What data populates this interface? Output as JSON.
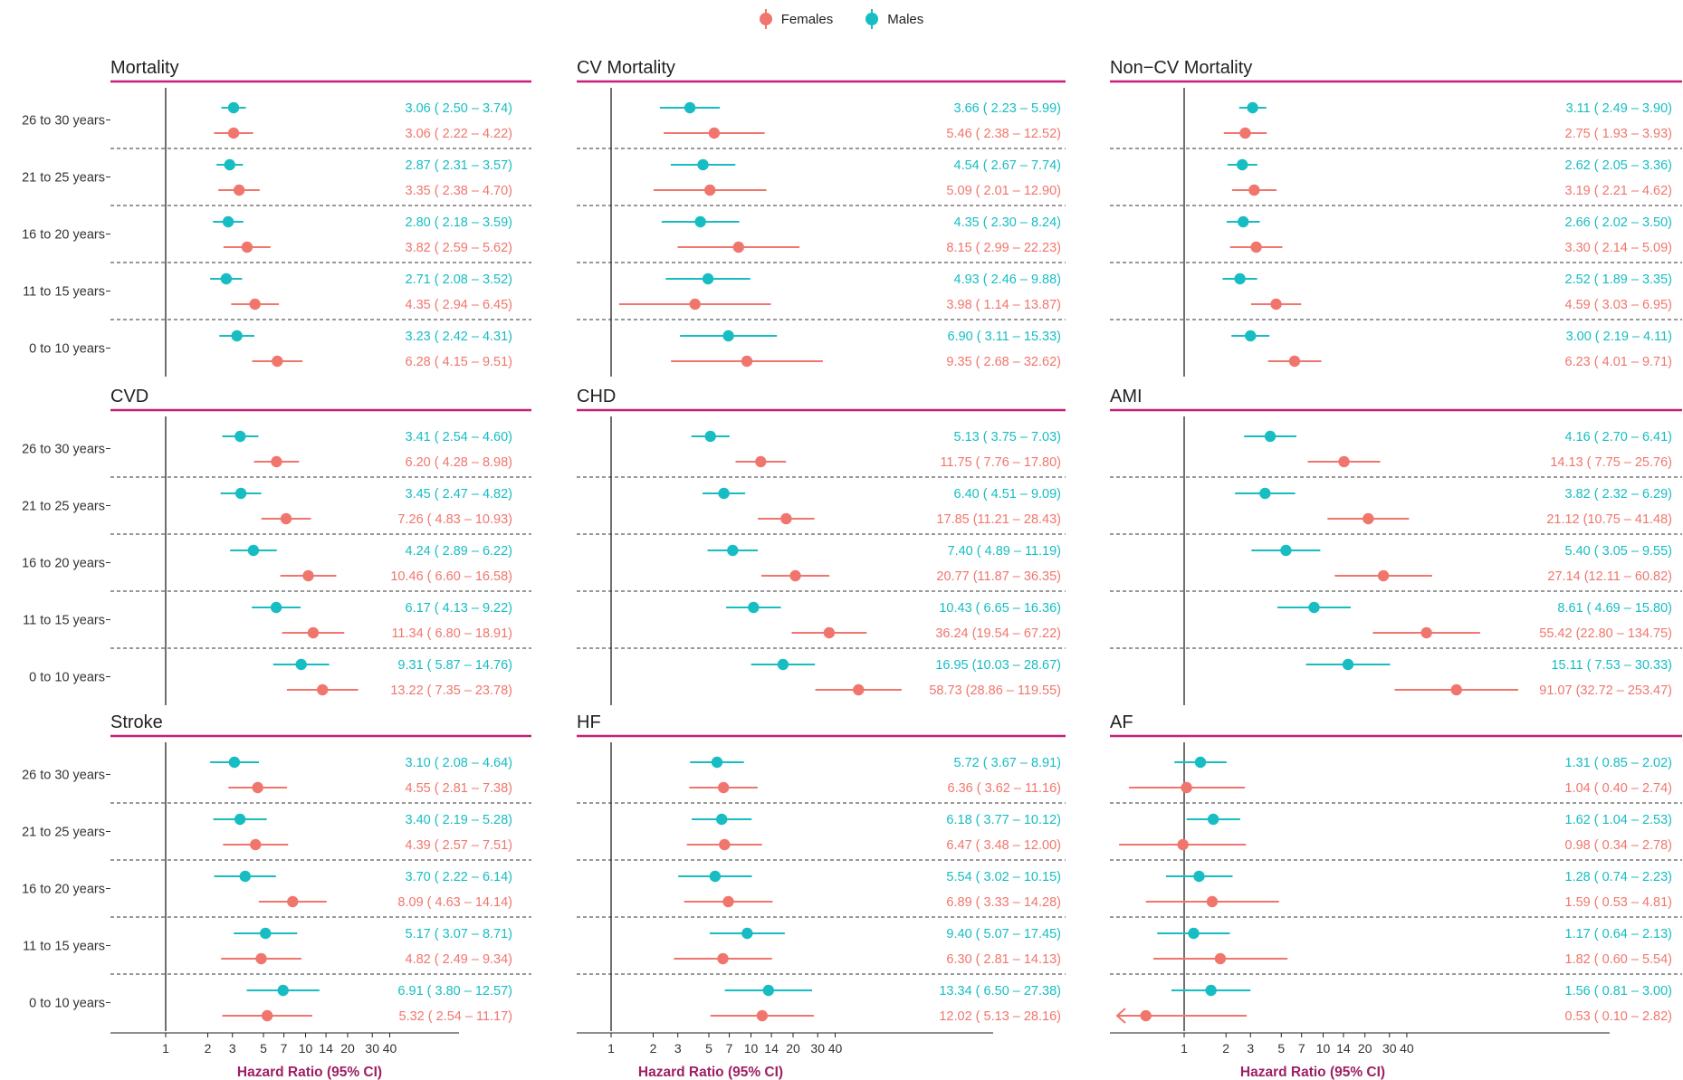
{
  "legend": {
    "females_label": "Females",
    "males_label": "Males"
  },
  "colors": {
    "females": "#F0766D",
    "males": "#17BDC2",
    "title_rule": "#C81E78",
    "axis_title": "#9E1F63",
    "text": "#222222",
    "separator": "#333333"
  },
  "chart_data": [
    {
      "type": "forest",
      "title": "Mortality",
      "xlabel": "Hazard Ratio (95% CI)",
      "xscale": "log",
      "x_ticks": [
        "1",
        "2",
        "3",
        "5",
        "7",
        "10",
        "14",
        "20",
        "30",
        "40"
      ],
      "categories": [
        "26 to 30 years",
        "21 to 25 years",
        "16 to 20 years",
        "11 to 15 years",
        "0 to 10 years"
      ],
      "series": [
        {
          "name": "Males",
          "values": [
            [
              3.06,
              2.5,
              3.74
            ],
            [
              2.87,
              2.31,
              3.57
            ],
            [
              2.8,
              2.18,
              3.59
            ],
            [
              2.71,
              2.08,
              3.52
            ],
            [
              3.23,
              2.42,
              4.31
            ]
          ]
        },
        {
          "name": "Females",
          "values": [
            [
              3.06,
              2.22,
              4.22
            ],
            [
              3.35,
              2.38,
              4.7
            ],
            [
              3.82,
              2.59,
              5.62
            ],
            [
              4.35,
              2.94,
              6.45
            ],
            [
              6.28,
              4.15,
              9.51
            ]
          ]
        }
      ]
    },
    {
      "type": "forest",
      "title": "CV Mortality",
      "xlabel": "Hazard Ratio (95% CI)",
      "xscale": "log",
      "x_ticks": [
        "1",
        "2",
        "3",
        "5",
        "7",
        "10",
        "14",
        "20",
        "30",
        "40"
      ],
      "categories": [
        "26 to 30 years",
        "21 to 25 years",
        "16 to 20 years",
        "11 to 15 years",
        "0 to 10 years"
      ],
      "series": [
        {
          "name": "Males",
          "values": [
            [
              3.66,
              2.23,
              5.99
            ],
            [
              4.54,
              2.67,
              7.74
            ],
            [
              4.35,
              2.3,
              8.24
            ],
            [
              4.93,
              2.46,
              9.88
            ],
            [
              6.9,
              3.11,
              15.33
            ]
          ]
        },
        {
          "name": "Females",
          "values": [
            [
              5.46,
              2.38,
              12.52
            ],
            [
              5.09,
              2.01,
              12.9
            ],
            [
              8.15,
              2.99,
              22.23
            ],
            [
              3.98,
              1.14,
              13.87
            ],
            [
              9.35,
              2.68,
              32.62
            ]
          ]
        }
      ]
    },
    {
      "type": "forest",
      "title": "Non−CV Mortality",
      "xlabel": "Hazard Ratio (95% CI)",
      "xscale": "log",
      "x_ticks": [
        "1",
        "2",
        "3",
        "5",
        "7",
        "10",
        "14",
        "20",
        "30",
        "40"
      ],
      "categories": [
        "26 to 30 years",
        "21 to 25 years",
        "16 to 20 years",
        "11 to 15 years",
        "0 to 10 years"
      ],
      "series": [
        {
          "name": "Males",
          "values": [
            [
              3.11,
              2.49,
              3.9
            ],
            [
              2.62,
              2.05,
              3.36
            ],
            [
              2.66,
              2.02,
              3.5
            ],
            [
              2.52,
              1.89,
              3.35
            ],
            [
              3.0,
              2.19,
              4.11
            ]
          ]
        },
        {
          "name": "Females",
          "values": [
            [
              2.75,
              1.93,
              3.93
            ],
            [
              3.19,
              2.21,
              4.62
            ],
            [
              3.3,
              2.14,
              5.09
            ],
            [
              4.59,
              3.03,
              6.95
            ],
            [
              6.23,
              4.01,
              9.71
            ]
          ]
        }
      ]
    },
    {
      "type": "forest",
      "title": "CVD",
      "xlabel": "Hazard Ratio (95% CI)",
      "xscale": "log",
      "x_ticks": [
        "1",
        "2",
        "3",
        "5",
        "7",
        "10",
        "14",
        "20",
        "30",
        "40"
      ],
      "categories": [
        "26 to 30 years",
        "21 to 25 years",
        "16 to 20 years",
        "11 to 15 years",
        "0 to 10 years"
      ],
      "series": [
        {
          "name": "Males",
          "values": [
            [
              3.41,
              2.54,
              4.6
            ],
            [
              3.45,
              2.47,
              4.82
            ],
            [
              4.24,
              2.89,
              6.22
            ],
            [
              6.17,
              4.13,
              9.22
            ],
            [
              9.31,
              5.87,
              14.76
            ]
          ]
        },
        {
          "name": "Females",
          "values": [
            [
              6.2,
              4.28,
              8.98
            ],
            [
              7.26,
              4.83,
              10.93
            ],
            [
              10.46,
              6.6,
              16.58
            ],
            [
              11.34,
              6.8,
              18.91
            ],
            [
              13.22,
              7.35,
              23.78
            ]
          ]
        }
      ]
    },
    {
      "type": "forest",
      "title": "CHD",
      "xlabel": "Hazard Ratio (95% CI)",
      "xscale": "log",
      "x_ticks": [
        "1",
        "2",
        "3",
        "5",
        "7",
        "10",
        "14",
        "20",
        "30",
        "40"
      ],
      "categories": [
        "26 to 30 years",
        "21 to 25 years",
        "16 to 20 years",
        "11 to 15 years",
        "0 to 10 years"
      ],
      "series": [
        {
          "name": "Males",
          "values": [
            [
              5.13,
              3.75,
              7.03
            ],
            [
              6.4,
              4.51,
              9.09
            ],
            [
              7.4,
              4.89,
              11.19
            ],
            [
              10.43,
              6.65,
              16.36
            ],
            [
              16.95,
              10.03,
              28.67
            ]
          ]
        },
        {
          "name": "Females",
          "values": [
            [
              11.75,
              7.76,
              17.8
            ],
            [
              17.85,
              11.21,
              28.43
            ],
            [
              20.77,
              11.87,
              36.35
            ],
            [
              36.24,
              19.54,
              67.22
            ],
            [
              58.73,
              28.86,
              119.55
            ]
          ]
        }
      ]
    },
    {
      "type": "forest",
      "title": "AMI",
      "xlabel": "Hazard Ratio (95% CI)",
      "xscale": "log",
      "x_ticks": [
        "1",
        "2",
        "3",
        "5",
        "7",
        "10",
        "14",
        "20",
        "30",
        "40"
      ],
      "categories": [
        "26 to 30 years",
        "21 to 25 years",
        "16 to 20 years",
        "11 to 15 years",
        "0 to 10 years"
      ],
      "series": [
        {
          "name": "Males",
          "values": [
            [
              4.16,
              2.7,
              6.41
            ],
            [
              3.82,
              2.32,
              6.29
            ],
            [
              5.4,
              3.05,
              9.55
            ],
            [
              8.61,
              4.69,
              15.8
            ],
            [
              15.11,
              7.53,
              30.33
            ]
          ]
        },
        {
          "name": "Females",
          "values": [
            [
              14.13,
              7.75,
              25.76
            ],
            [
              21.12,
              10.75,
              41.48
            ],
            [
              27.14,
              12.11,
              60.82
            ],
            [
              55.42,
              22.8,
              134.75
            ],
            [
              91.07,
              32.72,
              253.47
            ]
          ]
        }
      ]
    },
    {
      "type": "forest",
      "title": "Stroke",
      "xlabel": "Hazard Ratio (95% CI)",
      "xscale": "log",
      "x_ticks": [
        "1",
        "2",
        "3",
        "5",
        "7",
        "10",
        "14",
        "20",
        "30",
        "40"
      ],
      "categories": [
        "26 to 30 years",
        "21 to 25 years",
        "16 to 20 years",
        "11 to 15 years",
        "0 to 10 years"
      ],
      "series": [
        {
          "name": "Males",
          "values": [
            [
              3.1,
              2.08,
              4.64
            ],
            [
              3.4,
              2.19,
              5.28
            ],
            [
              3.7,
              2.22,
              6.14
            ],
            [
              5.17,
              3.07,
              8.71
            ],
            [
              6.91,
              3.8,
              12.57
            ]
          ]
        },
        {
          "name": "Females",
          "values": [
            [
              4.55,
              2.81,
              7.38
            ],
            [
              4.39,
              2.57,
              7.51
            ],
            [
              8.09,
              4.63,
              14.14
            ],
            [
              4.82,
              2.49,
              9.34
            ],
            [
              5.32,
              2.54,
              11.17
            ]
          ]
        }
      ]
    },
    {
      "type": "forest",
      "title": "HF",
      "xlabel": "Hazard Ratio (95% CI)",
      "xscale": "log",
      "x_ticks": [
        "1",
        "2",
        "3",
        "5",
        "7",
        "10",
        "14",
        "20",
        "30",
        "40"
      ],
      "categories": [
        "26 to 30 years",
        "21 to 25 years",
        "16 to 20 years",
        "11 to 15 years",
        "0 to 10 years"
      ],
      "series": [
        {
          "name": "Males",
          "values": [
            [
              5.72,
              3.67,
              8.91
            ],
            [
              6.18,
              3.77,
              10.12
            ],
            [
              5.54,
              3.02,
              10.15
            ],
            [
              9.4,
              5.07,
              17.45
            ],
            [
              13.34,
              6.5,
              27.38
            ]
          ]
        },
        {
          "name": "Females",
          "values": [
            [
              6.36,
              3.62,
              11.16
            ],
            [
              6.47,
              3.48,
              12.0
            ],
            [
              6.89,
              3.33,
              14.28
            ],
            [
              6.3,
              2.81,
              14.13
            ],
            [
              12.02,
              5.13,
              28.16
            ]
          ]
        }
      ]
    },
    {
      "type": "forest",
      "title": "AF",
      "xlabel": "Hazard Ratio (95% CI)",
      "xscale": "log",
      "x_ticks": [
        "1",
        "2",
        "3",
        "5",
        "7",
        "10",
        "14",
        "20",
        "30",
        "40"
      ],
      "categories": [
        "26 to 30 years",
        "21 to 25 years",
        "16 to 20 years",
        "11 to 15 years",
        "0 to 10 years"
      ],
      "series": [
        {
          "name": "Males",
          "values": [
            [
              1.31,
              0.85,
              2.02
            ],
            [
              1.62,
              1.04,
              2.53
            ],
            [
              1.28,
              0.74,
              2.23
            ],
            [
              1.17,
              0.64,
              2.13
            ],
            [
              1.56,
              0.81,
              3.0
            ]
          ]
        },
        {
          "name": "Females",
          "values": [
            [
              1.04,
              0.4,
              2.74
            ],
            [
              0.98,
              0.34,
              2.78
            ],
            [
              1.59,
              0.53,
              4.81
            ],
            [
              1.82,
              0.6,
              5.54
            ],
            [
              0.53,
              0.1,
              2.82
            ]
          ]
        }
      ]
    }
  ]
}
